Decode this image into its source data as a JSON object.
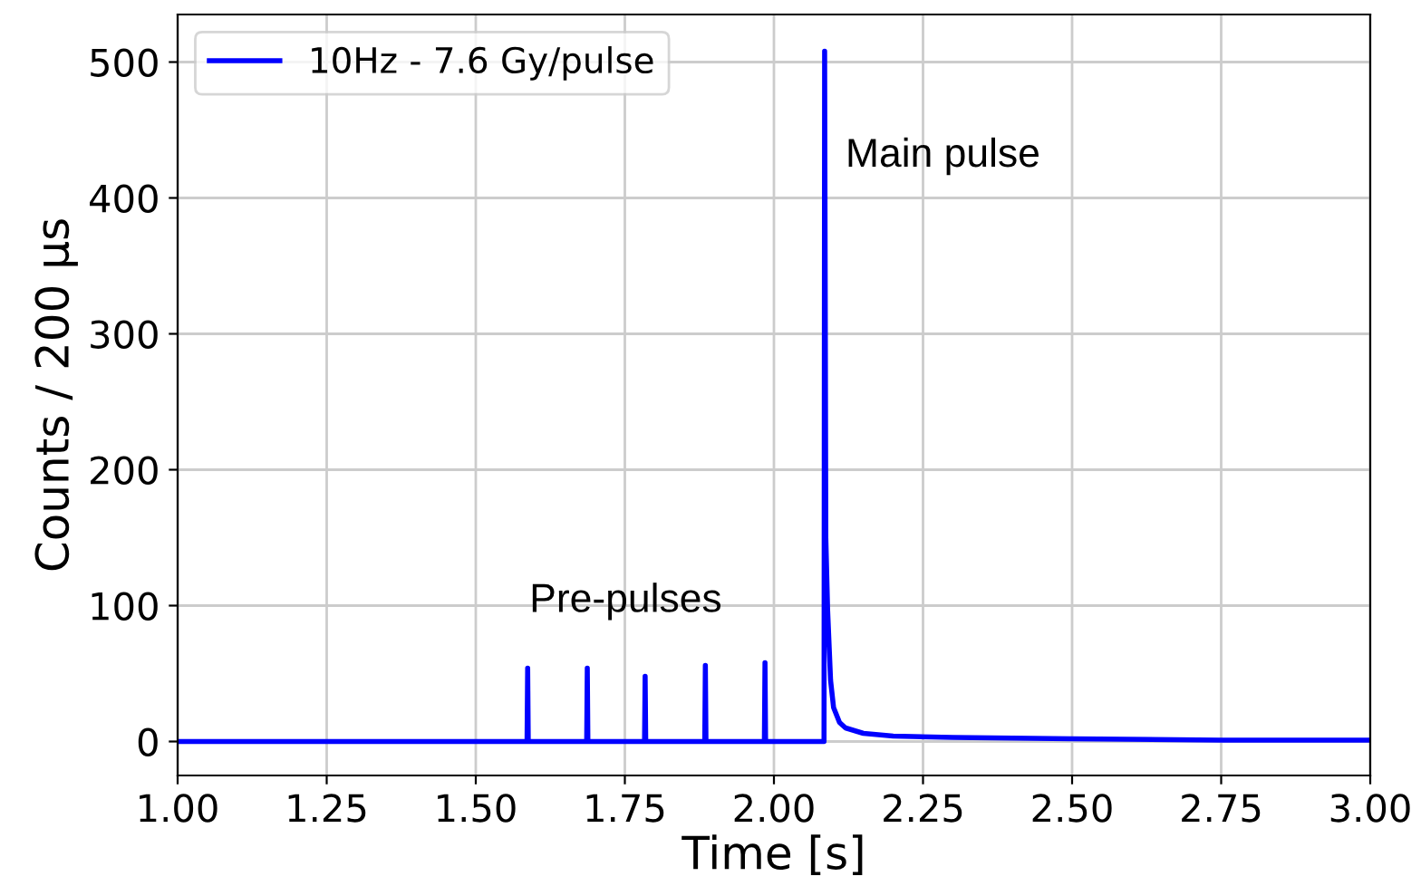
{
  "chart_data": {
    "type": "line",
    "xlabel": "Time [s]",
    "ylabel": "Counts / 200 μs",
    "series": [
      {
        "name": "10Hz - 7.6 Gy/pulse",
        "color": "#0000ff",
        "x": [
          1.0,
          1.586,
          1.587,
          1.588,
          1.686,
          1.687,
          1.688,
          1.783,
          1.784,
          1.785,
          1.884,
          1.885,
          1.886,
          1.984,
          1.985,
          1.986,
          2.084,
          2.085,
          2.087,
          2.09,
          2.095,
          2.1,
          2.11,
          2.12,
          2.15,
          2.2,
          2.3,
          2.5,
          2.75,
          3.0
        ],
        "values": [
          0,
          0,
          54,
          0,
          0,
          54,
          0,
          0,
          48,
          0,
          0,
          56,
          0,
          0,
          58,
          0,
          0,
          508,
          150,
          97,
          45,
          25,
          14,
          10,
          6,
          4,
          3,
          2,
          1,
          1
        ]
      }
    ],
    "xlim": [
      1.0,
      3.0
    ],
    "xticks": [
      {
        "value": 1.0,
        "label": "1.00"
      },
      {
        "value": 1.25,
        "label": "1.25"
      },
      {
        "value": 1.5,
        "label": "1.50"
      },
      {
        "value": 1.75,
        "label": "1.75"
      },
      {
        "value": 2.0,
        "label": "2.00"
      },
      {
        "value": 2.25,
        "label": "2.25"
      },
      {
        "value": 2.5,
        "label": "2.50"
      },
      {
        "value": 2.75,
        "label": "2.75"
      },
      {
        "value": 3.0,
        "label": "3.00"
      }
    ],
    "ylim": [
      -25,
      535
    ],
    "yticks": [
      0,
      100,
      200,
      300,
      400,
      500
    ],
    "annotations": [
      "Main pulse",
      "Pre-pulses"
    ],
    "grid": true,
    "legend": "top left",
    "marker": "none",
    "line_style": "solid"
  }
}
